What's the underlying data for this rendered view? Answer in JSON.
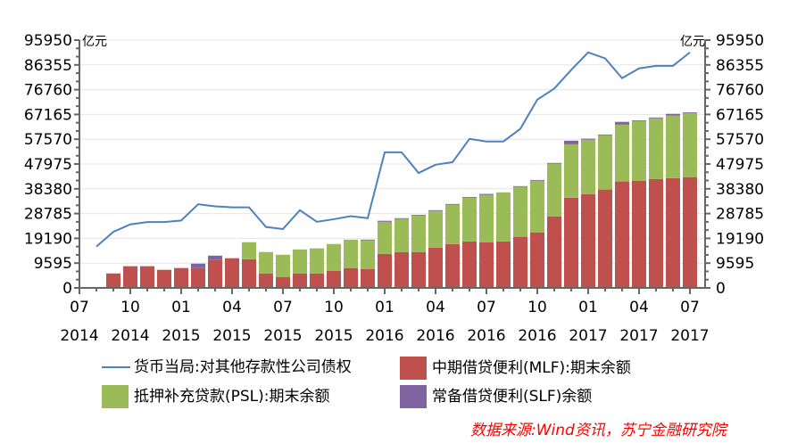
{
  "chart_data": {
    "type": "bar+line",
    "unit_left": "亿元",
    "unit_right": "亿元",
    "ylim": [
      0,
      95950
    ],
    "yticks": [
      0,
      9595,
      19190,
      28785,
      38380,
      47975,
      57570,
      67165,
      76760,
      86355,
      95950
    ],
    "xtick_labels": [
      {
        "month": "07",
        "year": "2014"
      },
      {
        "month": "10",
        "year": "2014"
      },
      {
        "month": "01",
        "year": "2015"
      },
      {
        "month": "04",
        "year": "2015"
      },
      {
        "month": "07",
        "year": "2015"
      },
      {
        "month": "10",
        "year": "2015"
      },
      {
        "month": "01",
        "year": "2016"
      },
      {
        "month": "04",
        "year": "2016"
      },
      {
        "month": "07",
        "year": "2016"
      },
      {
        "month": "10",
        "year": "2016"
      },
      {
        "month": "01",
        "year": "2017"
      },
      {
        "month": "04",
        "year": "2017"
      },
      {
        "month": "07",
        "year": "2017"
      }
    ],
    "x": [
      "2014-07",
      "2014-08",
      "2014-09",
      "2014-10",
      "2014-11",
      "2014-12",
      "2015-01",
      "2015-02",
      "2015-03",
      "2015-04",
      "2015-05",
      "2015-06",
      "2015-07",
      "2015-08",
      "2015-09",
      "2015-10",
      "2015-11",
      "2015-12",
      "2016-01",
      "2016-02",
      "2016-03",
      "2016-04",
      "2016-05",
      "2016-06",
      "2016-07",
      "2016-08",
      "2016-09",
      "2016-10",
      "2016-11",
      "2016-12",
      "2017-01",
      "2017-02",
      "2017-03",
      "2017-04",
      "2017-05",
      "2017-06",
      "2017-07"
    ],
    "series": [
      {
        "name": "货币当局:对其他存款性公司债权",
        "type": "line",
        "color": "#4f81bd",
        "values": [
          null,
          16000,
          21700,
          24600,
          25500,
          25500,
          26100,
          32400,
          31600,
          31200,
          31200,
          23600,
          22800,
          30100,
          25600,
          26600,
          27800,
          27000,
          52500,
          52500,
          44500,
          47700,
          48700,
          57700,
          56700,
          56700,
          61600,
          72900,
          77200,
          84400,
          91200,
          88900,
          81200,
          85000,
          86000,
          86000,
          91200
        ]
      },
      {
        "name": "中期借贷便利(MLF):期末余额",
        "type": "bar",
        "color": "#c0504d",
        "values": [
          null,
          null,
          5600,
          8400,
          8400,
          7000,
          7700,
          7700,
          10800,
          11500,
          11100,
          5600,
          4250,
          5600,
          5600,
          6650,
          7700,
          7350,
          13200,
          13900,
          13900,
          15600,
          17000,
          18000,
          17700,
          18000,
          19800,
          21500,
          27700,
          34900,
          36300,
          38100,
          41200,
          41500,
          42200,
          42500,
          42900
        ]
      },
      {
        "name": "抵押补充贷款(PSL):期末余额",
        "type": "bar",
        "color": "#9bbb59",
        "values": [
          null,
          null,
          0,
          0,
          0,
          0,
          0,
          0,
          0,
          0,
          6600,
          8300,
          8600,
          9300,
          9700,
          10350,
          11000,
          11050,
          12400,
          12800,
          14100,
          14200,
          15200,
          16900,
          18300,
          19000,
          19300,
          20000,
          20400,
          20700,
          21100,
          21000,
          22000,
          23100,
          23500,
          24200,
          24800
        ]
      },
      {
        "name": "常备借贷便利(SLF)余额",
        "type": "bar",
        "color": "#8064a2",
        "values": [
          null,
          null,
          0,
          0,
          0,
          0,
          0,
          1700,
          1700,
          0,
          0,
          0,
          0,
          0,
          0,
          0,
          0,
          300,
          400,
          300,
          300,
          300,
          300,
          300,
          400,
          0,
          300,
          300,
          300,
          1400,
          400,
          300,
          1100,
          300,
          300,
          700,
          300
        ]
      }
    ]
  },
  "legend": {
    "line": "货币当局:对其他存款性公司债权",
    "mlf": "中期借贷便利(MLF):期末余额",
    "psl": "抵押补充贷款(PSL):期末余额",
    "slf": "常备借贷便利(SLF)余额"
  },
  "source": "数据来源:Wind资讯，苏宁金融研究院"
}
